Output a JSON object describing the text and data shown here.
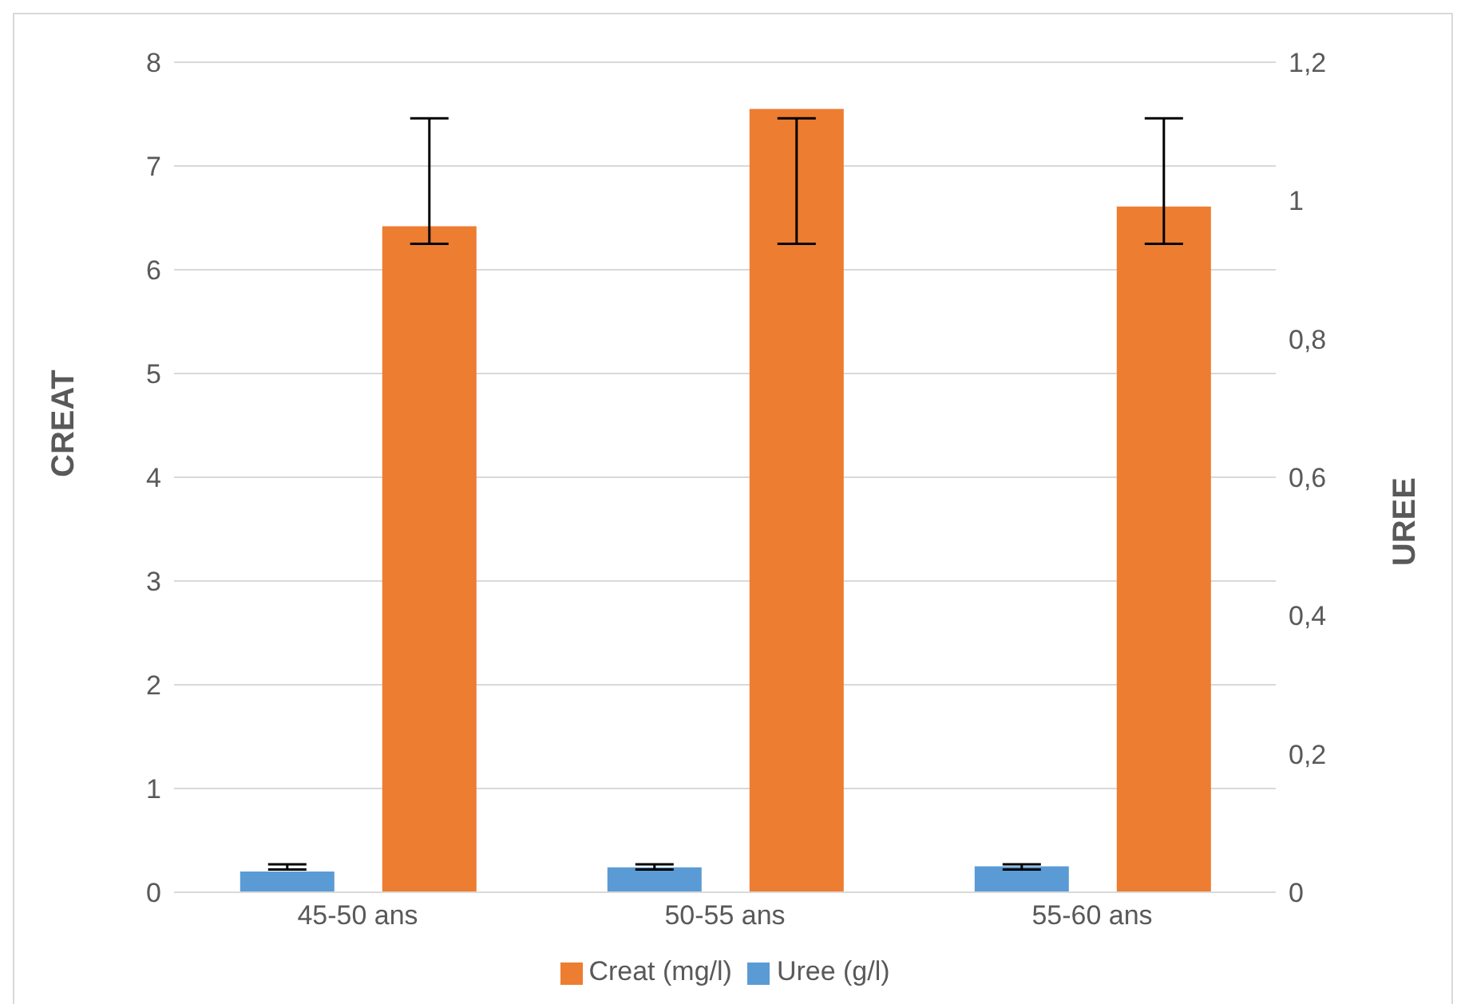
{
  "chart_data": {
    "type": "bar",
    "categories": [
      "45-50 ans",
      "50-55 ans",
      "55-60 ans"
    ],
    "series": [
      {
        "name": "Uree (g/l)",
        "color": "#5b9bd5",
        "values": [
          0.2,
          0.24,
          0.25
        ],
        "errors": [
          [
            0.22,
            0.27
          ],
          [
            0.22,
            0.27
          ],
          [
            0.22,
            0.27
          ]
        ]
      },
      {
        "name": "Creat (mg/l)",
        "color": "#ed7d31",
        "values": [
          6.42,
          7.55,
          6.61
        ],
        "errors": [
          [
            6.25,
            7.46
          ],
          [
            6.25,
            7.46
          ],
          [
            6.25,
            7.46
          ]
        ]
      }
    ],
    "ylabel": "CREAT",
    "y2label": "UREE",
    "ylim": [
      0,
      8
    ],
    "yticks": [
      0,
      1,
      2,
      3,
      4,
      5,
      6,
      7,
      8
    ],
    "y2lim": [
      0,
      1.2
    ],
    "y2ticks": [
      0,
      {
        "value": 0.2,
        "label": "0,2"
      },
      {
        "value": 0.4,
        "label": "0,4"
      },
      {
        "value": 0.6,
        "label": "0,6"
      },
      {
        "value": 0.8,
        "label": "0,8"
      },
      1,
      {
        "value": 1.2,
        "label": "1,2"
      }
    ],
    "grid": "y",
    "legend": "bottom"
  }
}
